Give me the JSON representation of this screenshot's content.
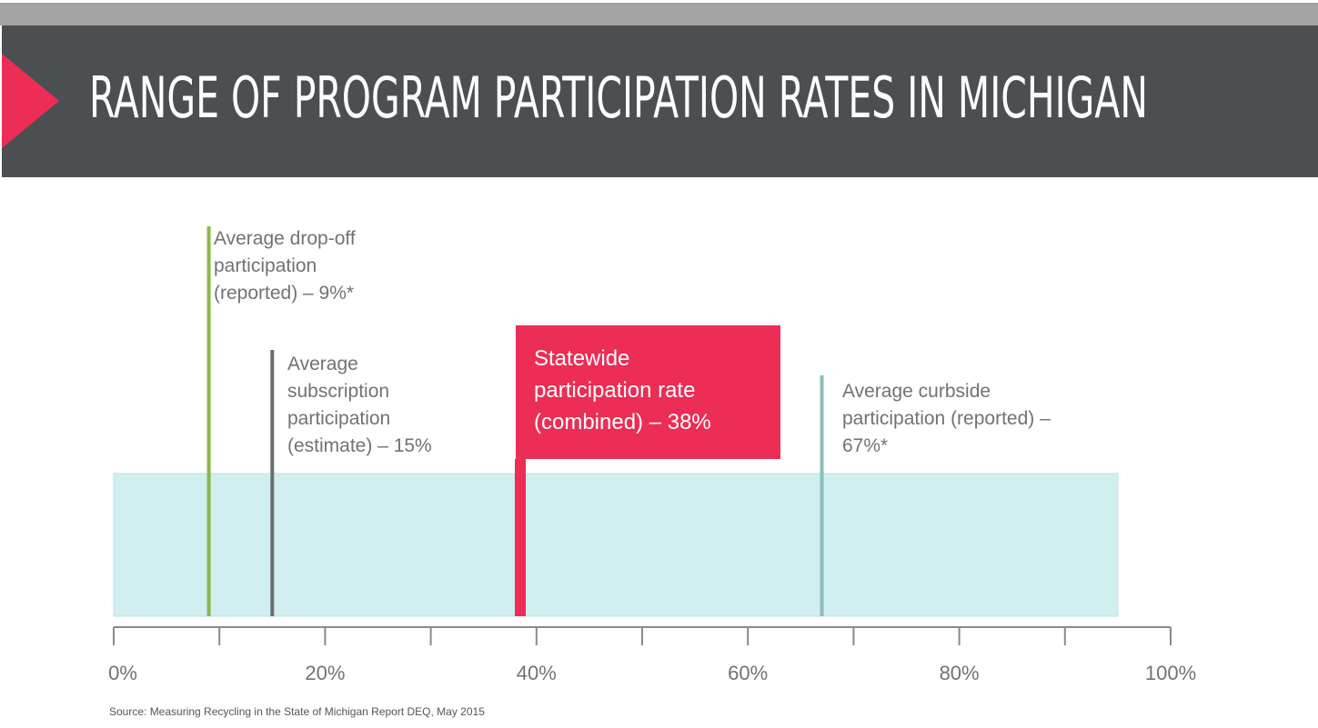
{
  "title": "RANGE OF PROGRAM PARTICIPATION RATES IN MICHIGAN",
  "source": "Source: Measuring Recycling in the State of Michigan Report DEQ, May 2015",
  "colors": {
    "banner": "#4c4f52",
    "accent": "#ec2d55",
    "band": "#d1eef0",
    "dropoff": "#8ab84a",
    "subscription": "#6b6d6f",
    "curbside": "#8fbcbc",
    "axis": "#8a8a8a",
    "label": "#707275"
  },
  "chart_data": {
    "type": "range",
    "xlim": [
      0,
      100
    ],
    "ticks": [
      "0%",
      "20%",
      "40%",
      "60%",
      "80%",
      "100%"
    ],
    "tick_values": [
      0,
      20,
      40,
      60,
      80,
      100
    ],
    "minor_tick_values": [
      10,
      30,
      50,
      70,
      90
    ],
    "band": [
      0,
      95
    ],
    "markers": [
      {
        "key": "dropoff",
        "value": 9,
        "lines": [
          "Average drop-off",
          "participation",
          "(reported) – 9%*"
        ]
      },
      {
        "key": "subscription",
        "value": 15,
        "lines": [
          "Average",
          "subscription",
          "participation",
          "(estimate) – 15%"
        ]
      },
      {
        "key": "statewide",
        "value": 38,
        "highlight": true,
        "lines": [
          "Statewide",
          "participation rate",
          "(combined) – 38%"
        ]
      },
      {
        "key": "curbside",
        "value": 67,
        "lines": [
          "Average curbside",
          "participation (reported) –",
          "67%*"
        ]
      }
    ]
  }
}
